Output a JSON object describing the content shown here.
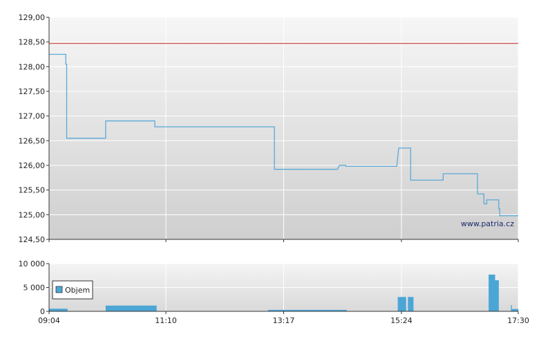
{
  "chart_data": [
    {
      "type": "line",
      "title": "",
      "xlabel": "",
      "ylabel": "",
      "x_ticks": [
        "09:04",
        "11:10",
        "13:17",
        "15:24",
        "17:30"
      ],
      "y_ticks": [
        "124,50",
        "125,00",
        "125,50",
        "126,00",
        "126,50",
        "127,00",
        "127,50",
        "128,00",
        "128,50",
        "129,00"
      ],
      "ylim": [
        124.5,
        129.0
      ],
      "xlim": [
        "09:04",
        "17:30"
      ],
      "reference_line": 128.47,
      "grid": true,
      "watermark": "www.patria.cz",
      "series": [
        {
          "color": "#5aa9d6",
          "points": [
            [
              "09:04",
              128.25
            ],
            [
              "09:22",
              128.25
            ],
            [
              "09:22",
              128.05
            ],
            [
              "09:23",
              128.05
            ],
            [
              "09:23",
              126.55
            ],
            [
              "10:05",
              126.55
            ],
            [
              "10:05",
              126.9
            ],
            [
              "10:58",
              126.9
            ],
            [
              "10:58",
              126.78
            ],
            [
              "13:07",
              126.78
            ],
            [
              "13:07",
              125.92
            ],
            [
              "14:15",
              125.92
            ],
            [
              "14:17",
              126.0
            ],
            [
              "14:24",
              126.0
            ],
            [
              "14:24",
              125.98
            ],
            [
              "15:19",
              125.98
            ],
            [
              "15:21",
              126.35
            ],
            [
              "15:34",
              126.35
            ],
            [
              "15:34",
              125.7
            ],
            [
              "16:09",
              125.7
            ],
            [
              "16:09",
              125.83
            ],
            [
              "16:46",
              125.83
            ],
            [
              "16:46",
              125.42
            ],
            [
              "16:53",
              125.42
            ],
            [
              "16:53",
              125.22
            ],
            [
              "16:56",
              125.22
            ],
            [
              "16:56",
              125.3
            ],
            [
              "17:09",
              125.3
            ],
            [
              "17:09",
              125.12
            ],
            [
              "17:10",
              125.12
            ],
            [
              "17:10",
              124.98
            ],
            [
              "17:30",
              124.98
            ]
          ]
        }
      ]
    },
    {
      "type": "bar",
      "title": "",
      "xlabel": "",
      "ylabel": "",
      "x_ticks": [
        "09:04",
        "11:10",
        "13:17",
        "15:24",
        "17:30"
      ],
      "y_ticks": [
        "0",
        "5 000",
        "10 000"
      ],
      "ylim": [
        0,
        10000
      ],
      "legend": {
        "label": "Objem",
        "position": "left"
      },
      "series": [
        {
          "name": "Objem",
          "color": "#4ba6d6",
          "bars": [
            [
              "09:04",
              "09:24",
              550
            ],
            [
              "09:24",
              "10:05",
              60
            ],
            [
              "10:05",
              "11:00",
              1200
            ],
            [
              "11:00",
              "13:00",
              60
            ],
            [
              "13:00",
              "14:25",
              300
            ],
            [
              "14:25",
              "15:20",
              60
            ],
            [
              "15:20",
              "15:29",
              3000
            ],
            [
              "15:29",
              "15:31",
              60
            ],
            [
              "15:31",
              "15:37",
              3000
            ],
            [
              "15:37",
              "16:58",
              60
            ],
            [
              "16:58",
              "17:05",
              7700
            ],
            [
              "17:05",
              "17:09",
              6500
            ],
            [
              "17:09",
              "17:22",
              60
            ],
            [
              "17:22",
              "17:23",
              1300
            ],
            [
              "17:23",
              "17:30",
              500
            ]
          ]
        }
      ]
    }
  ]
}
